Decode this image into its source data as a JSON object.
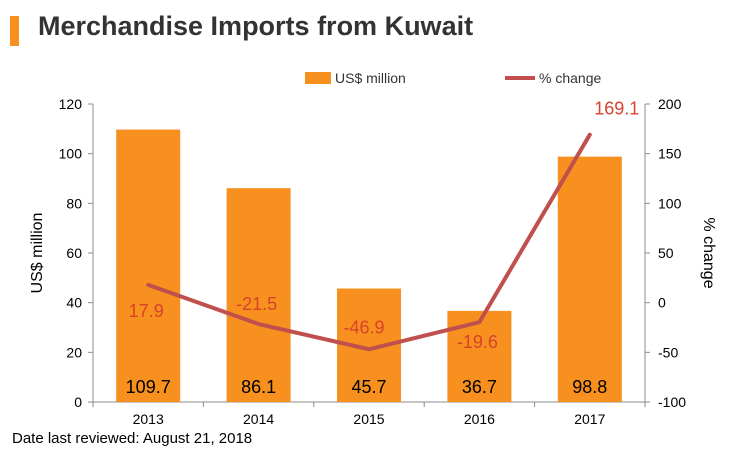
{
  "title": "Merchandise Imports from Kuwait",
  "footnote": "Date last reviewed: August 21, 2018",
  "chart_data": {
    "type": "bar",
    "categories": [
      "2013",
      "2014",
      "2015",
      "2016",
      "2017"
    ],
    "series": [
      {
        "name": "US$ million",
        "type": "bar",
        "axis": "left",
        "color": "#f7901e",
        "values": [
          109.7,
          86.1,
          45.7,
          36.7,
          98.8
        ],
        "labels": [
          "109.7",
          "86.1",
          "45.7",
          "36.7",
          "98.8"
        ]
      },
      {
        "name": "% change",
        "type": "line",
        "axis": "right",
        "color": "#c0504d",
        "values": [
          17.9,
          -21.5,
          -46.9,
          -19.6,
          169.1
        ],
        "labels": [
          "17.9",
          "-21.5",
          "-46.9",
          "-19.6",
          "169.1"
        ]
      }
    ],
    "ylabel": "US$ million",
    "ylim": [
      0,
      120
    ],
    "yticks": [
      "0",
      "20",
      "40",
      "60",
      "80",
      "100",
      "120"
    ],
    "y2label": "% change",
    "y2lim": [
      -100,
      200
    ],
    "y2ticks": [
      "-100",
      "-50",
      "0",
      "50",
      "100",
      "150",
      "200"
    ],
    "legend_position": "top",
    "grid": false
  }
}
